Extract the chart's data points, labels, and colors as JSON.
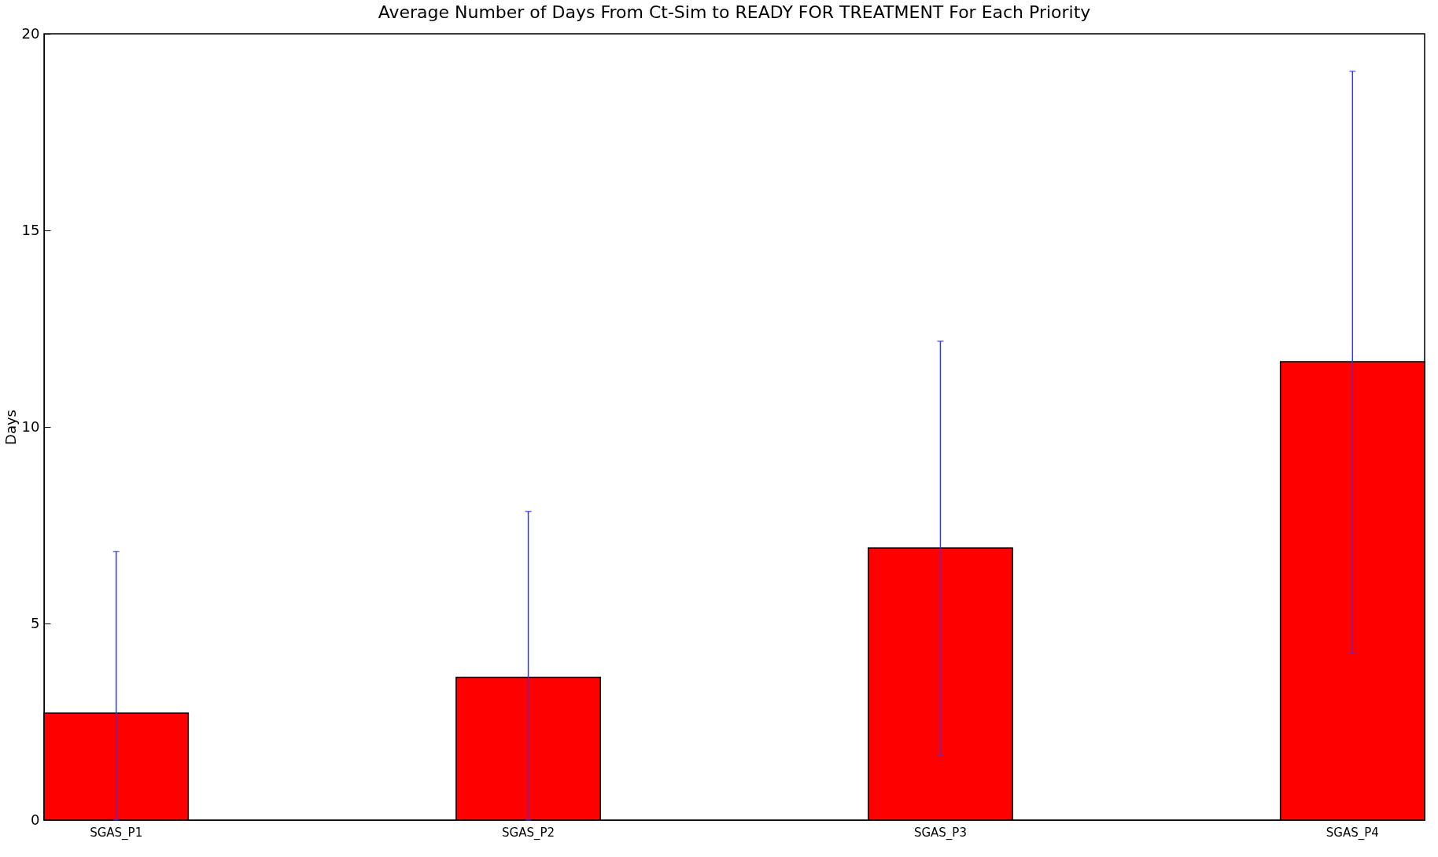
{
  "chart_data": {
    "type": "bar",
    "title": "Average Number of Days From Ct-Sim to READY FOR TREATMENT For Each Priority",
    "ylabel": "Days",
    "categories": [
      "SGAS_P1",
      "SGAS_P2",
      "SGAS_P3",
      "SGAS_P4"
    ],
    "values": [
      2.72,
      3.63,
      6.92,
      11.66
    ],
    "errors": [
      [
        0,
        6.83
      ],
      [
        0,
        7.85
      ],
      [
        1.66,
        12.18
      ],
      [
        4.24,
        19.05
      ]
    ],
    "color": "#ff0000",
    "ylim": [
      0,
      20
    ],
    "yticks": [
      0,
      5,
      10,
      15,
      20
    ],
    "grid": false
  }
}
